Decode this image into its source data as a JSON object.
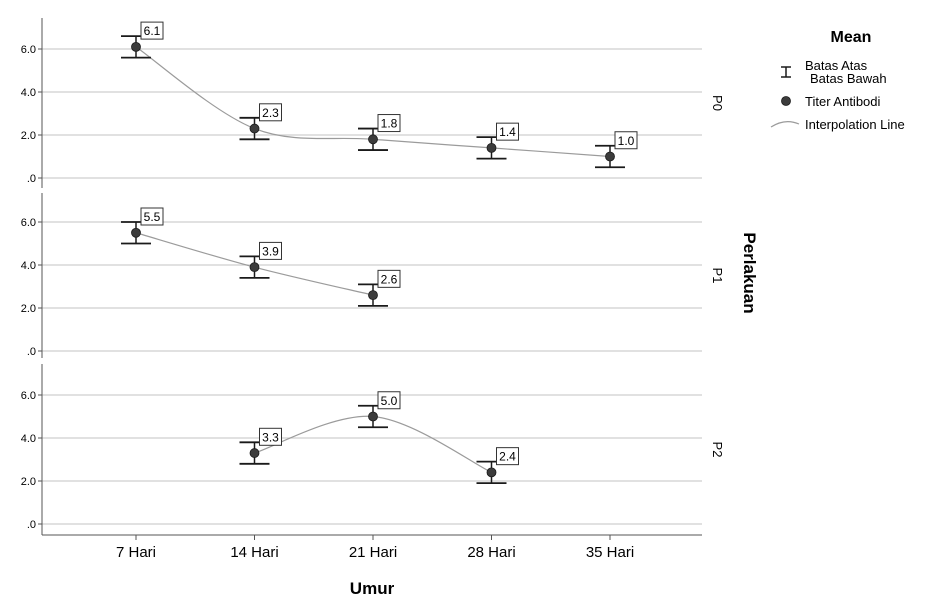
{
  "chart_data": {
    "type": "line",
    "legend_title": "Mean",
    "legend_items": [
      {
        "symbol": "errorbar",
        "label_line1": "Batas Atas",
        "label_line2": "Batas Bawah"
      },
      {
        "symbol": "point",
        "label": "Titer Antibodi"
      },
      {
        "symbol": "line",
        "label": "Interpolation Line"
      }
    ],
    "legend_position": "right",
    "xlabel": "Umur",
    "facet_label": "Perlakuan",
    "categories": [
      "7 Hari",
      "14 Hari",
      "21 Hari",
      "28 Hari",
      "35 Hari"
    ],
    "yticks": [
      ".0",
      "2.0",
      "4.0",
      "6.0"
    ],
    "ylim": [
      -0.5,
      7.0
    ],
    "grid": true,
    "colors": {
      "line": "#9b9b9b",
      "point": "#3c3c3c",
      "errorbar": "#1a1a1a",
      "grid": "#cfcfcf",
      "axis": "#555555"
    },
    "panels": [
      {
        "name": "P0",
        "x": [
          "7 Hari",
          "14 Hari",
          "21 Hari",
          "28 Hari",
          "35 Hari"
        ],
        "mean": [
          6.1,
          2.3,
          1.8,
          1.4,
          1.0
        ],
        "upper": [
          6.6,
          2.8,
          2.3,
          1.9,
          1.5
        ],
        "lower": [
          5.6,
          1.8,
          1.3,
          0.9,
          0.5
        ],
        "labels": [
          "6.1",
          "2.3",
          "1.8",
          "1.4",
          "1.0"
        ]
      },
      {
        "name": "P1",
        "x": [
          "7 Hari",
          "14 Hari",
          "21 Hari"
        ],
        "mean": [
          5.5,
          3.9,
          2.6
        ],
        "upper": [
          6.0,
          4.4,
          3.1
        ],
        "lower": [
          5.0,
          3.4,
          2.1
        ],
        "labels": [
          "5.5",
          "3.9",
          "2.6"
        ]
      },
      {
        "name": "P2",
        "x": [
          "14 Hari",
          "21 Hari",
          "28 Hari"
        ],
        "mean": [
          3.3,
          5.0,
          2.4
        ],
        "upper": [
          3.8,
          5.5,
          2.9
        ],
        "lower": [
          2.8,
          4.5,
          1.9
        ],
        "labels": [
          "3.3",
          "5.0",
          "2.4"
        ]
      }
    ]
  }
}
